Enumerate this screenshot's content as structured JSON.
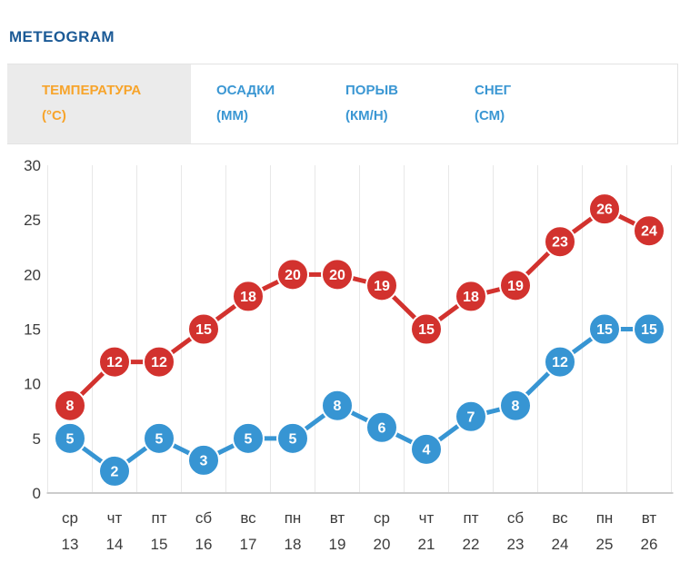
{
  "title": "METEOGRAM",
  "tabs": [
    {
      "label": "ТЕМПЕРАТУРА",
      "unit": "(°C)",
      "active": true
    },
    {
      "label": "ОСАДКИ",
      "unit": "(ММ)",
      "active": false
    },
    {
      "label": "ПОРЫВ",
      "unit": "(КМ/Н)",
      "active": false
    },
    {
      "label": "СНЕГ",
      "unit": "(СМ)",
      "active": false
    }
  ],
  "colors": {
    "title_blue": "#1b5a96",
    "tab_blue": "#3b97d3",
    "tab_active_orange": "#f7a42b",
    "tab_active_bg": "#ebebeb",
    "series_max_red": "#d2322e",
    "series_min_blue": "#3795d3",
    "grid": "#e8e8e8",
    "axis_line": "#cccccc",
    "axis_label": "#3c3c3c",
    "marker_text": "#ffffff"
  },
  "chart_data": {
    "type": "line",
    "title": "METEOGRAM",
    "x_days": [
      "ср",
      "чт",
      "пт",
      "сб",
      "вс",
      "пн",
      "вт",
      "ср",
      "чт",
      "пт",
      "сб",
      "вс",
      "пн",
      "вт"
    ],
    "x_dates": [
      "13",
      "14",
      "15",
      "16",
      "17",
      "18",
      "19",
      "20",
      "21",
      "22",
      "23",
      "24",
      "25",
      "26"
    ],
    "series": [
      {
        "name": "max-temperature",
        "color": "#d2322e",
        "values": [
          8,
          12,
          12,
          15,
          18,
          20,
          20,
          19,
          15,
          18,
          19,
          23,
          26,
          24
        ]
      },
      {
        "name": "min-temperature",
        "color": "#3795d3",
        "values": [
          5,
          2,
          5,
          3,
          5,
          5,
          8,
          6,
          4,
          7,
          8,
          12,
          15,
          15
        ]
      }
    ],
    "ylim": [
      0,
      30
    ],
    "yticks": [
      0,
      5,
      10,
      15,
      20,
      25,
      30
    ],
    "grid": "vertical",
    "legend": "none",
    "point_labels": "on"
  }
}
